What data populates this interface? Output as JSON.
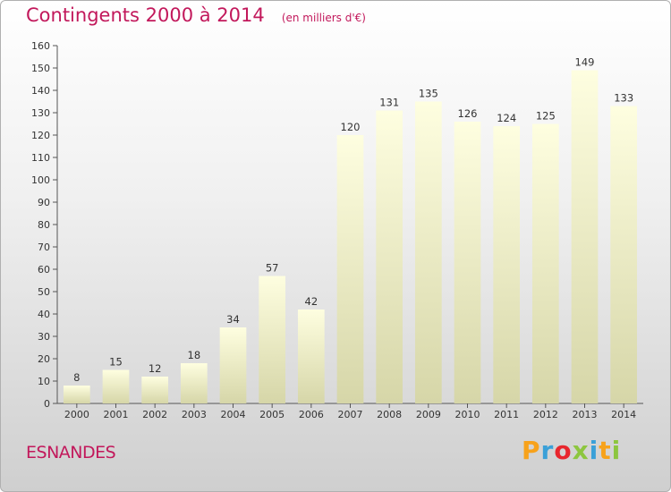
{
  "header": {
    "title": "Contingents 2000 à 2014",
    "subtitle": "(en milliers d'€)"
  },
  "footer": {
    "place": "ESNANDES",
    "logo_letters": [
      "P",
      "r",
      "o",
      "x",
      "i",
      "t",
      "i"
    ],
    "logo_colors": [
      "#f7a21b",
      "#3aa0d8",
      "#e8262d",
      "#8dc63f",
      "#3aa0d8",
      "#f7a21b",
      "#8dc63f"
    ]
  },
  "chart_data": {
    "type": "bar",
    "title": "Contingents 2000 à 2014",
    "subtitle": "(en milliers d'€)",
    "categories": [
      "2000",
      "2001",
      "2002",
      "2003",
      "2004",
      "2005",
      "2006",
      "2007",
      "2008",
      "2009",
      "2010",
      "2011",
      "2012",
      "2013",
      "2014"
    ],
    "values": [
      8,
      15,
      12,
      18,
      34,
      57,
      42,
      120,
      131,
      135,
      126,
      124,
      125,
      149,
      133
    ],
    "ylim": [
      0,
      160
    ],
    "yticks": [
      0,
      10,
      20,
      30,
      40,
      50,
      60,
      70,
      80,
      90,
      100,
      110,
      120,
      130,
      140,
      150,
      160
    ],
    "grid": false,
    "data_labels": true,
    "bar_color_top": "#fefee0",
    "bar_color_bottom": "#d6d6a8"
  }
}
